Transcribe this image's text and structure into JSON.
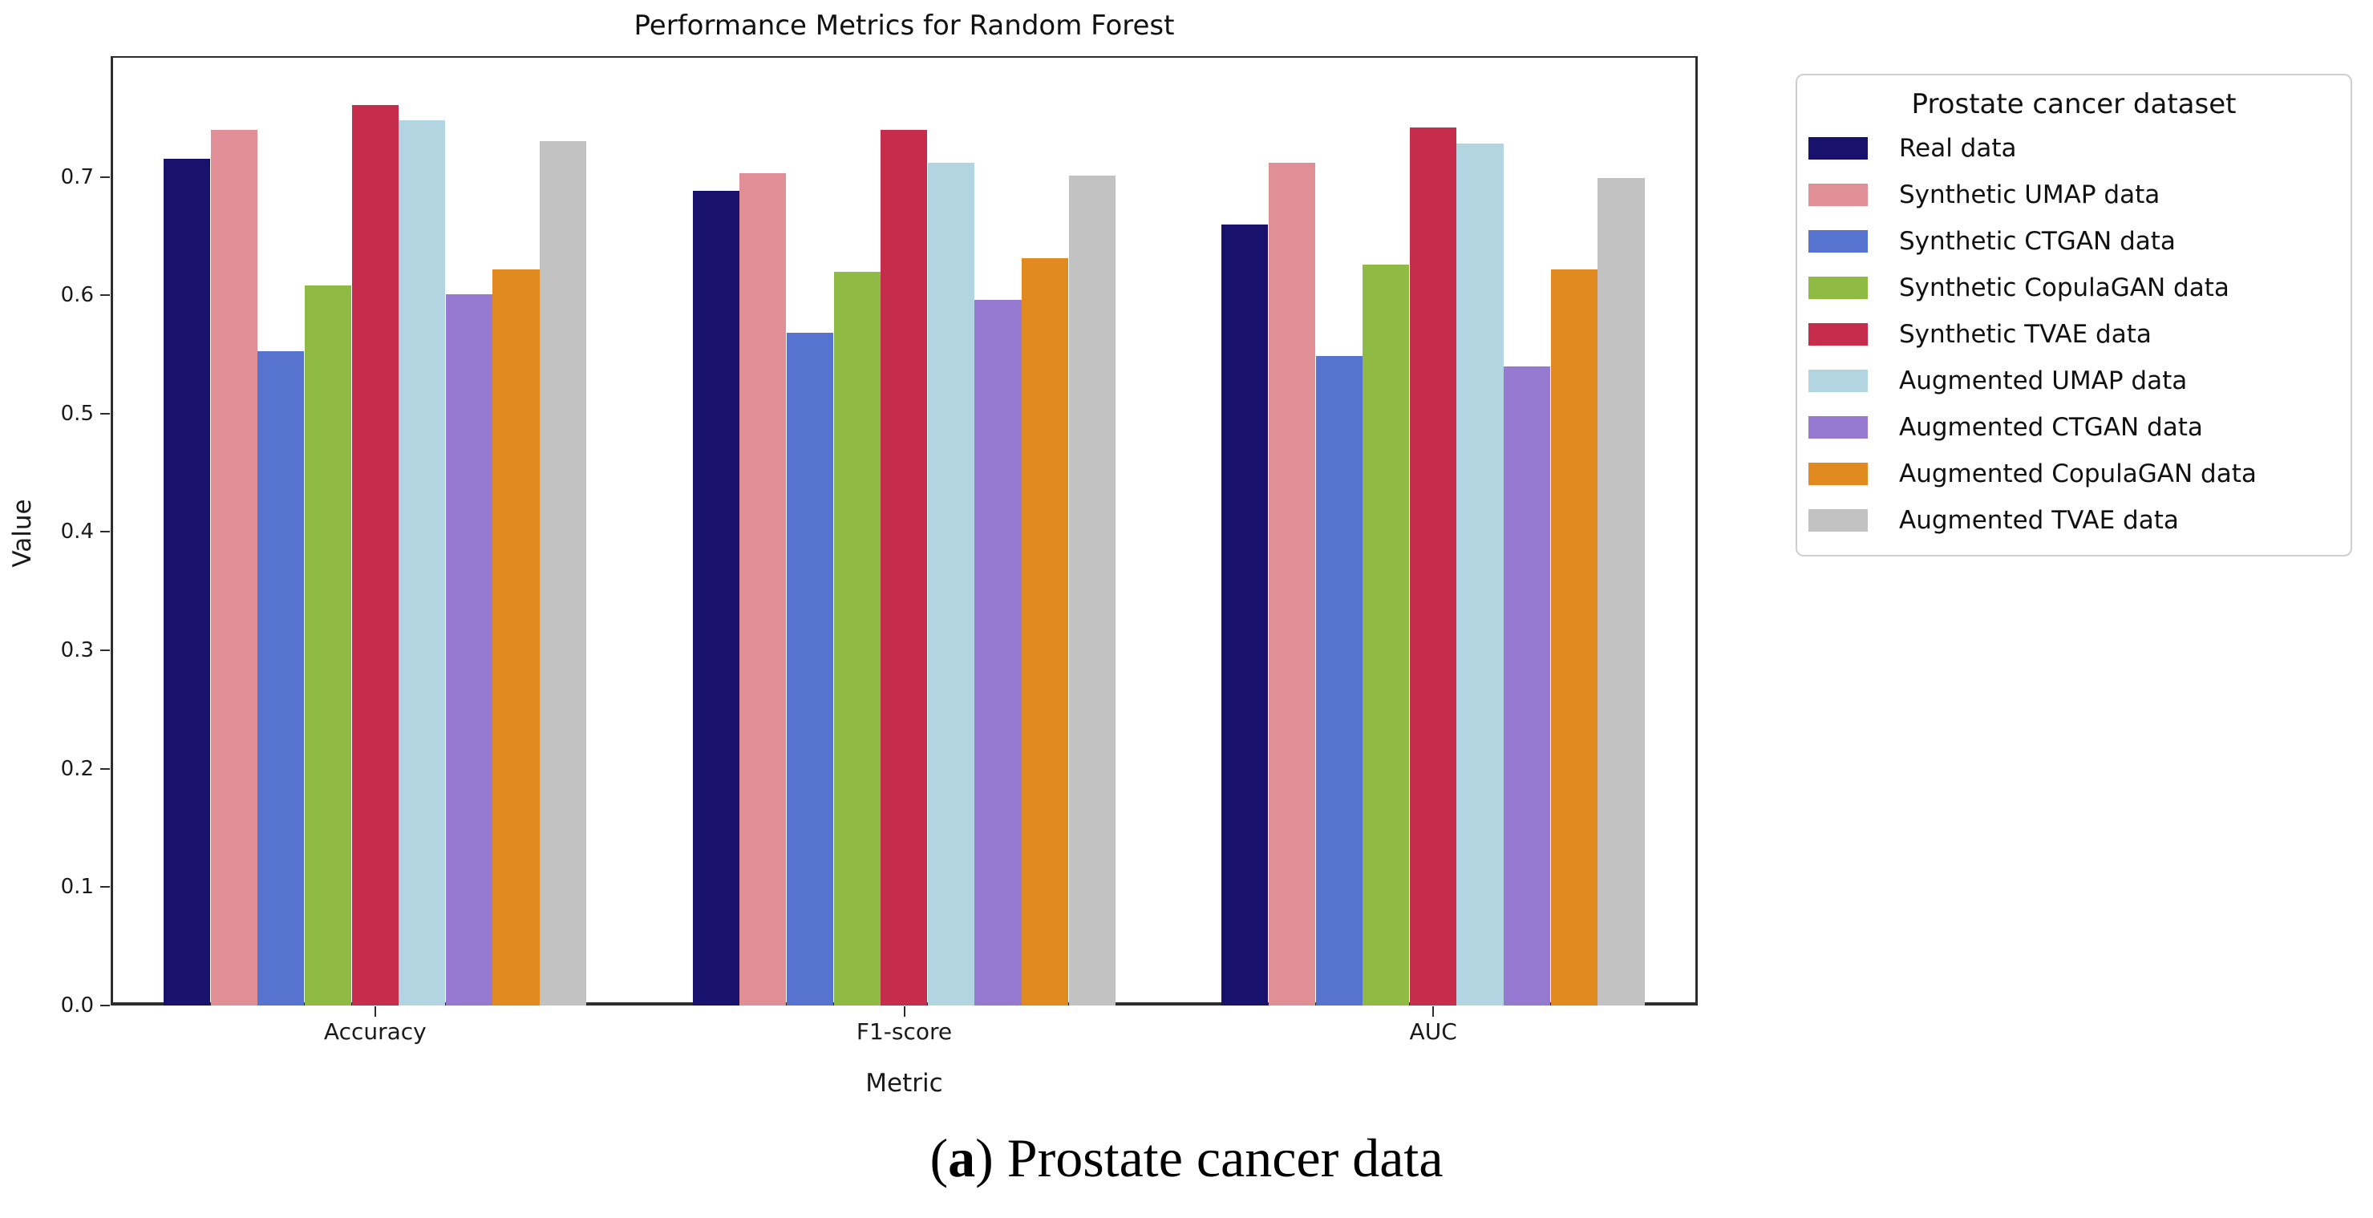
{
  "chart_data": {
    "type": "bar",
    "title": "Performance Metrics for Random Forest",
    "xlabel": "Metric",
    "ylabel": "Value",
    "categories": [
      "Accuracy",
      "F1-score",
      "AUC"
    ],
    "ytick_labels": [
      "0.0",
      "0.1",
      "0.2",
      "0.3",
      "0.4",
      "0.5",
      "0.6",
      "0.7"
    ],
    "ylim": [
      0,
      0.802
    ],
    "grid": false,
    "legend_title": "Prostate cancer dataset",
    "legend_position": "upper right, outside plot",
    "series": [
      {
        "name": "Real data",
        "color": "#18126d",
        "values": [
          0.715,
          0.688,
          0.66
        ]
      },
      {
        "name": "Synthetic UMAP data",
        "color": "#e08f96",
        "values": [
          0.74,
          0.703,
          0.712
        ]
      },
      {
        "name": "Synthetic CTGAN data",
        "color": "#5573cf",
        "values": [
          0.553,
          0.568,
          0.549
        ]
      },
      {
        "name": "Synthetic CopulaGAN data",
        "color": "#8fbb44",
        "values": [
          0.608,
          0.62,
          0.626
        ]
      },
      {
        "name": "Synthetic TVAE data",
        "color": "#c62c4c",
        "values": [
          0.761,
          0.74,
          0.742
        ]
      },
      {
        "name": "Augmented UMAP data",
        "color": "#b3d4e1",
        "values": [
          0.748,
          0.712,
          0.728
        ]
      },
      {
        "name": "Augmented CTGAN data",
        "color": "#9679d1",
        "values": [
          0.601,
          0.596,
          0.54
        ]
      },
      {
        "name": "Augmented CopulaGAN data",
        "color": "#e08a20",
        "values": [
          0.622,
          0.631,
          0.622
        ]
      },
      {
        "name": "Augmented TVAE data",
        "color": "#c2c2c2",
        "values": [
          0.73,
          0.701,
          0.699
        ]
      }
    ]
  },
  "caption": {
    "open": "(",
    "marker": "a",
    "close": ") ",
    "text": "Prostate cancer data"
  }
}
